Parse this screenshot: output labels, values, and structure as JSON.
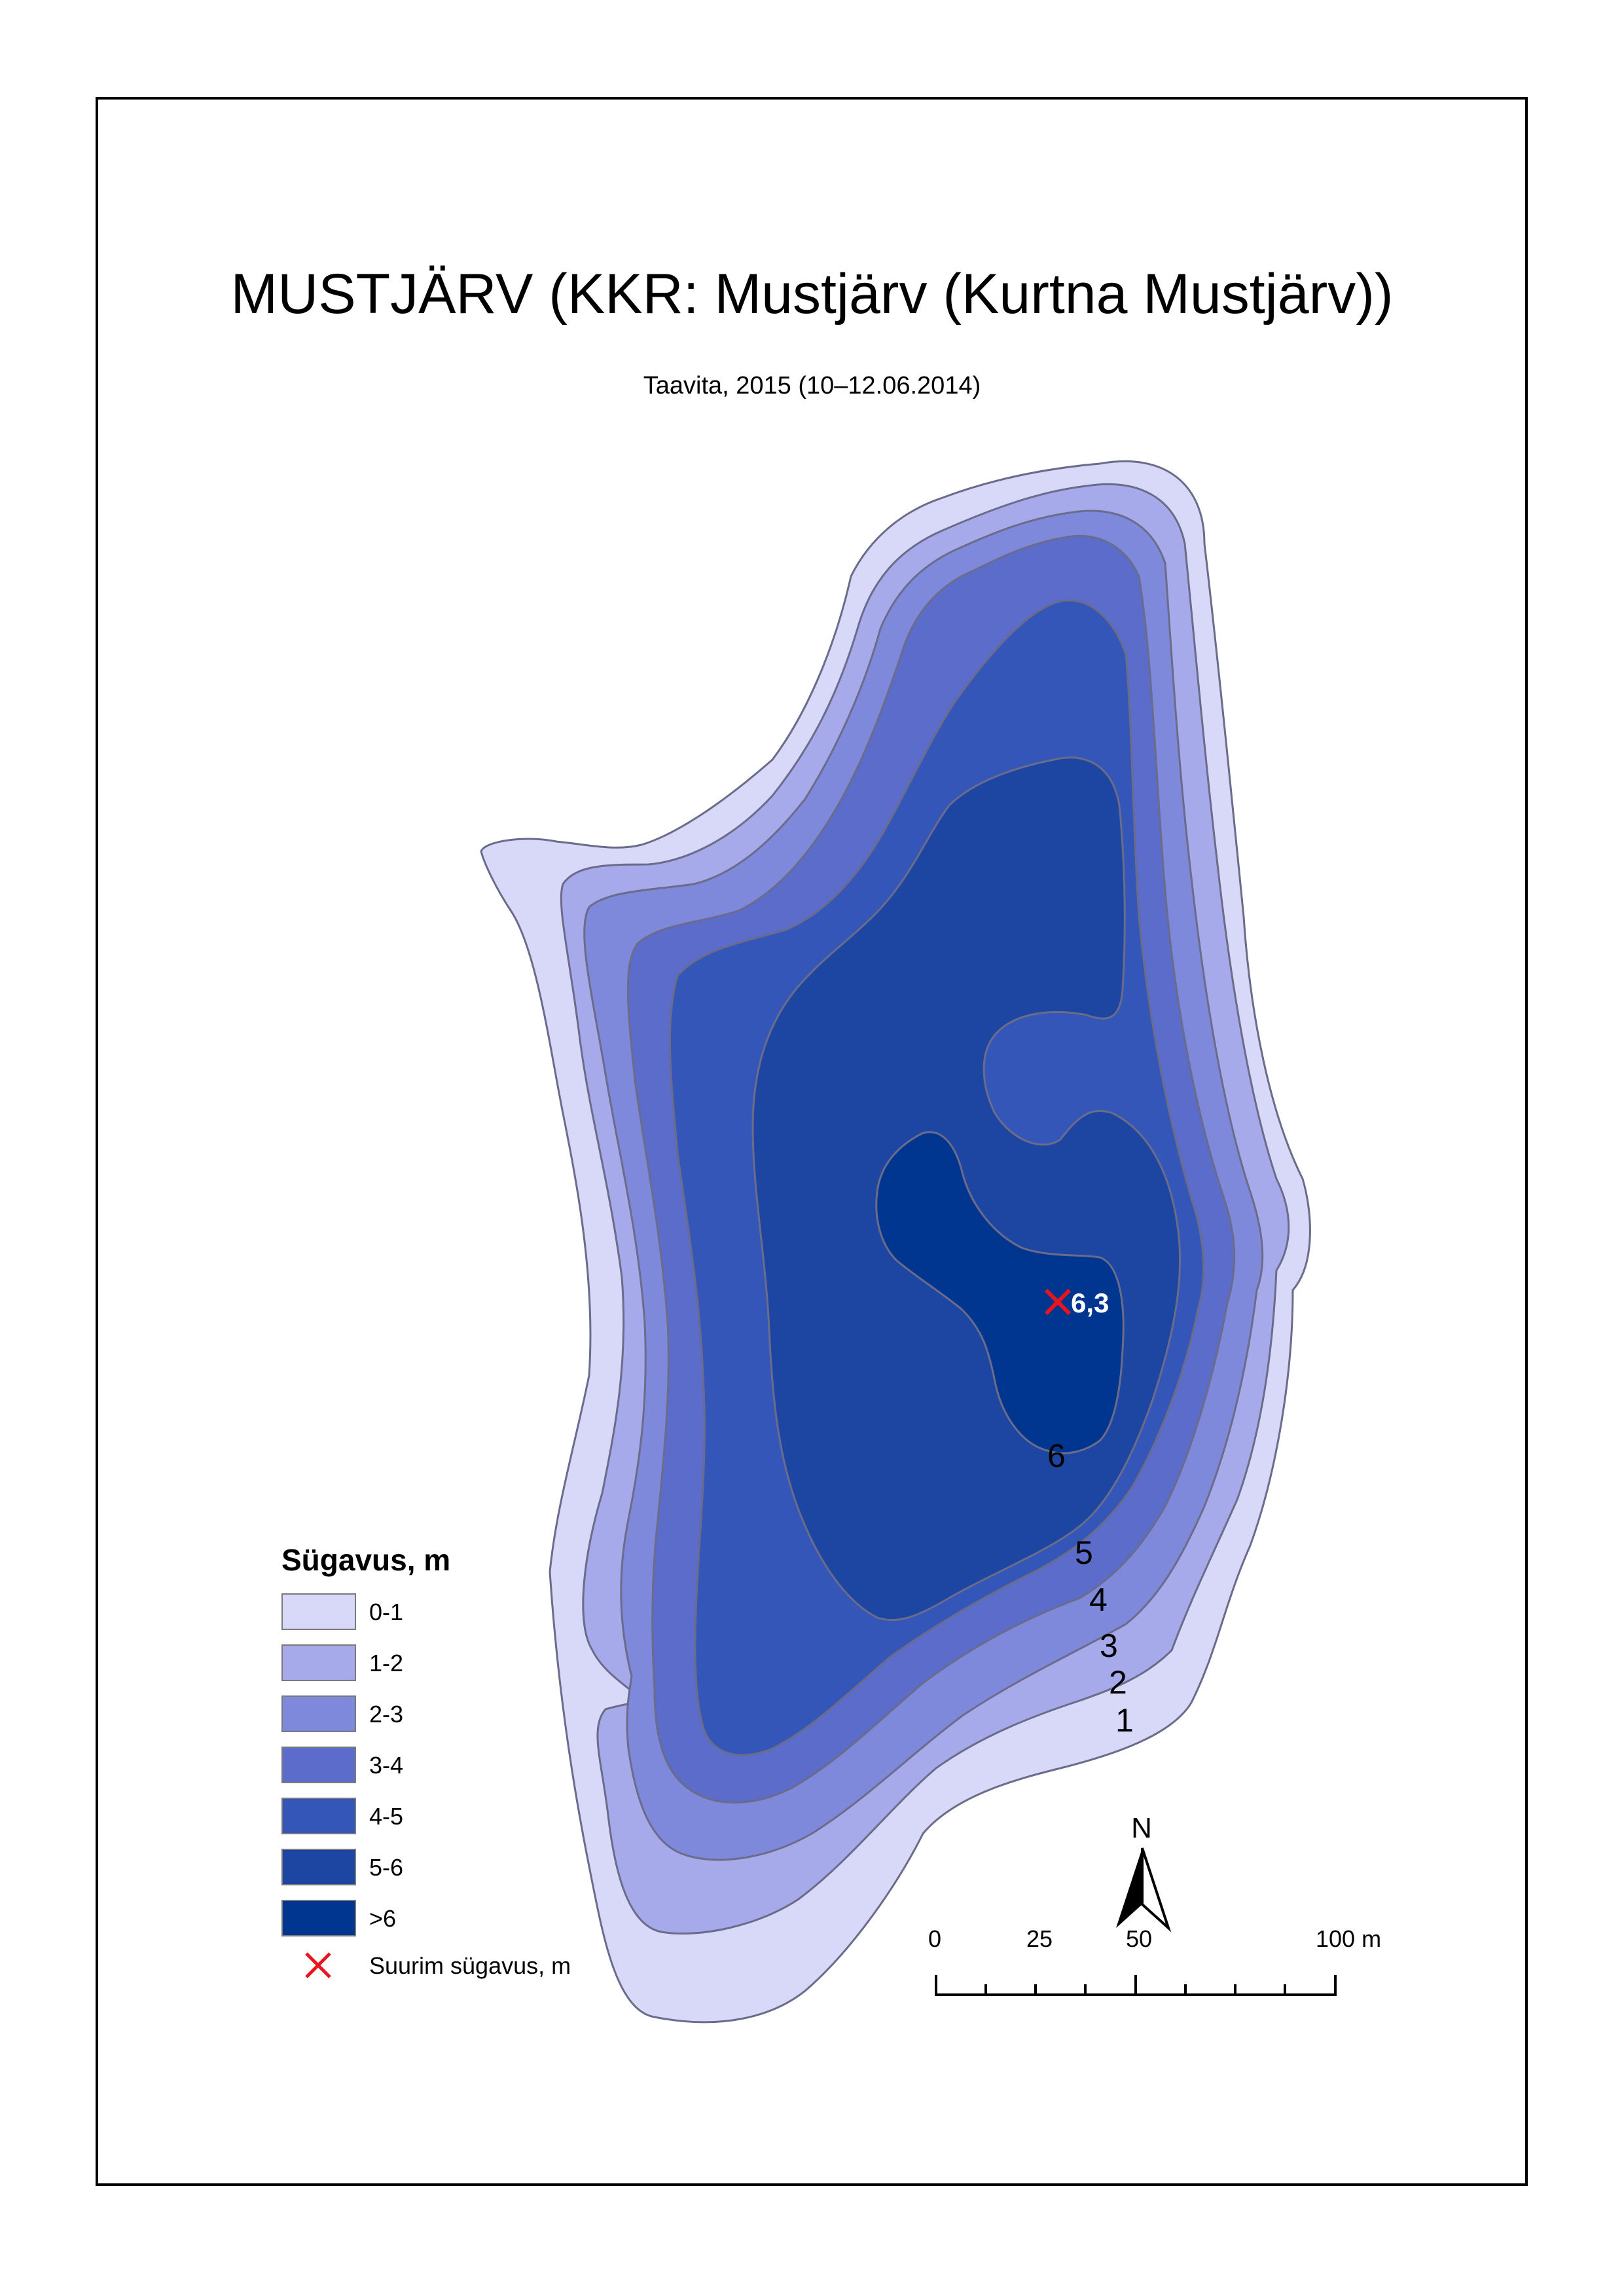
{
  "title": "MUSTJÄRV (KKR: Mustjärv (Kurtna Mustjärv))",
  "subtitle": "Taavita, 2015 (10–12.06.2014)",
  "colors": {
    "frame": "#000000",
    "contour_line": "#6b6b8a",
    "depth_0_1": "#d8d9f8",
    "depth_1_2": "#a6aaea",
    "depth_2_3": "#7f89dc",
    "depth_3_4": "#5b6cca",
    "depth_4_5": "#3456b8",
    "depth_5_6": "#1c46a2",
    "depth_gt6": "#003590",
    "deepest_marker": "#e8141e",
    "deepest_label": "#ffffff"
  },
  "deepest_point": {
    "value_label": "6,3",
    "icon": "red-x-icon"
  },
  "contour_labels": [
    "6",
    "5",
    "4",
    "3",
    "2",
    "1"
  ],
  "legend": {
    "title": "Sügavus, m",
    "items": [
      {
        "label": "0-1",
        "color": "#d8d9f8"
      },
      {
        "label": "1-2",
        "color": "#a6aaea"
      },
      {
        "label": "2-3",
        "color": "#7f89dc"
      },
      {
        "label": "3-4",
        "color": "#5b6cca"
      },
      {
        "label": "4-5",
        "color": "#3456b8"
      },
      {
        "label": "5-6",
        "color": "#1c46a2"
      },
      {
        "label": ">6",
        "color": "#003590"
      }
    ],
    "marker_label": "Suurim sügavus, m"
  },
  "north_arrow": {
    "label": "N",
    "icon": "north-arrow-icon"
  },
  "scale_bar": {
    "labels": [
      "0",
      "25",
      "50",
      "100 m"
    ]
  }
}
